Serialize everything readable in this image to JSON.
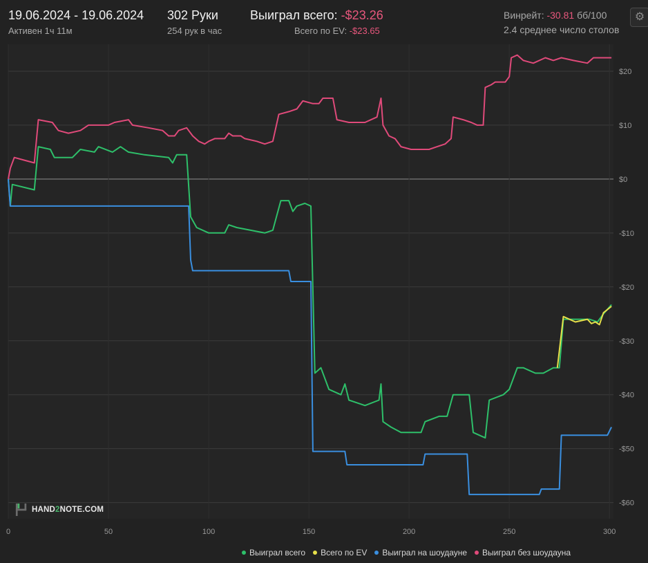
{
  "header": {
    "date_range": "19.06.2024 - 19.06.2024",
    "active_time": "Активен 1ч 11м",
    "hands": "302 Руки",
    "hands_per_hour": "254 рук в час",
    "won_total_label": "Выиграл всего:",
    "won_total_value": "-$23.26",
    "ev_total_label": "Всего по EV:",
    "ev_total_value": "-$23.65",
    "winrate_label": "Винрейт:",
    "winrate_value": "-30.81",
    "winrate_unit": "бб/100",
    "avg_tables": "2.4 среднее число столов"
  },
  "watermark": {
    "prefix": "HAND",
    "num": "2",
    "suffix": "NOTE.COM"
  },
  "colors": {
    "green": "#2ec06a",
    "yellow": "#e6e04a",
    "blue": "#3a8fe0",
    "pink": "#e04a7a",
    "negative": "#e8577d"
  },
  "chart_data": {
    "type": "line",
    "xlim": [
      0,
      302
    ],
    "ylim": [
      -63,
      25
    ],
    "x_ticks": [
      0,
      50,
      100,
      150,
      200,
      250,
      300
    ],
    "y_ticks": [
      20,
      10,
      0,
      -10,
      -20,
      -30,
      -40,
      -50,
      -60
    ],
    "y_tick_labels": [
      "$20",
      "$10",
      "$0",
      "-$10",
      "-$20",
      "-$30",
      "-$40",
      "-$50",
      "-$60"
    ],
    "grid": true,
    "legend_position": "bottom-right",
    "series": [
      {
        "name": "Выиграл всего",
        "color": "#2ec06a",
        "points": [
          [
            0,
            0
          ],
          [
            1,
            -5
          ],
          [
            2,
            -1
          ],
          [
            13,
            -2
          ],
          [
            15,
            6
          ],
          [
            21,
            5.5
          ],
          [
            23,
            4
          ],
          [
            32,
            4
          ],
          [
            36,
            5.5
          ],
          [
            43,
            5
          ],
          [
            45,
            6
          ],
          [
            52,
            5
          ],
          [
            56,
            6
          ],
          [
            60,
            5
          ],
          [
            68,
            4.5
          ],
          [
            80,
            4
          ],
          [
            82,
            3
          ],
          [
            84,
            4.5
          ],
          [
            89,
            4.5
          ],
          [
            91,
            -7
          ],
          [
            94,
            -9
          ],
          [
            100,
            -10
          ],
          [
            108,
            -10
          ],
          [
            110,
            -8.5
          ],
          [
            114,
            -9
          ],
          [
            128,
            -10
          ],
          [
            132,
            -9.5
          ],
          [
            136,
            -4
          ],
          [
            140,
            -4
          ],
          [
            142,
            -6
          ],
          [
            144,
            -5
          ],
          [
            148,
            -4.5
          ],
          [
            151,
            -5
          ],
          [
            153,
            -36
          ],
          [
            156,
            -35
          ],
          [
            160,
            -39
          ],
          [
            166,
            -40
          ],
          [
            168,
            -38
          ],
          [
            170,
            -41
          ],
          [
            178,
            -42
          ],
          [
            185,
            -41
          ],
          [
            186,
            -38
          ],
          [
            187,
            -45
          ],
          [
            191,
            -46
          ],
          [
            196,
            -47
          ],
          [
            206,
            -47
          ],
          [
            208,
            -45
          ],
          [
            215,
            -44
          ],
          [
            219,
            -44
          ],
          [
            222,
            -40
          ],
          [
            230,
            -40
          ],
          [
            232,
            -47
          ],
          [
            238,
            -48
          ],
          [
            240,
            -41
          ],
          [
            247,
            -40
          ],
          [
            250,
            -39
          ],
          [
            254,
            -35
          ],
          [
            257,
            -35
          ],
          [
            263,
            -36
          ],
          [
            267,
            -36
          ],
          [
            272,
            -35
          ],
          [
            275,
            -35
          ],
          [
            277,
            -26
          ],
          [
            290,
            -26
          ],
          [
            294,
            -26.5
          ],
          [
            297,
            -25
          ],
          [
            301,
            -23.3
          ]
        ]
      },
      {
        "name": "Всего по EV",
        "color": "#e6e04a",
        "points": [
          [
            274,
            -35
          ],
          [
            277,
            -25.5
          ],
          [
            283,
            -26.5
          ],
          [
            289,
            -26
          ],
          [
            291,
            -26.8
          ],
          [
            293,
            -26.5
          ],
          [
            295,
            -27
          ],
          [
            297,
            -24.8
          ],
          [
            301,
            -23.6
          ]
        ]
      },
      {
        "name": "Выиграл на шоудауне",
        "color": "#3a8fe0",
        "points": [
          [
            0,
            0
          ],
          [
            1,
            -5
          ],
          [
            90,
            -5
          ],
          [
            91,
            -15
          ],
          [
            92,
            -17
          ],
          [
            140,
            -17
          ],
          [
            141,
            -19
          ],
          [
            151,
            -19
          ],
          [
            152,
            -50.5
          ],
          [
            168,
            -50.5
          ],
          [
            169,
            -53
          ],
          [
            207,
            -53
          ],
          [
            208,
            -51
          ],
          [
            229,
            -51
          ],
          [
            230,
            -58.5
          ],
          [
            265,
            -58.5
          ],
          [
            266,
            -57.5
          ],
          [
            275,
            -57.5
          ],
          [
            276,
            -47.5
          ],
          [
            299,
            -47.5
          ],
          [
            301,
            -46
          ]
        ]
      },
      {
        "name": "Выиграл без шоудауна",
        "color": "#e04a7a",
        "points": [
          [
            0,
            0
          ],
          [
            1,
            2
          ],
          [
            3,
            4
          ],
          [
            8,
            3.5
          ],
          [
            13,
            3
          ],
          [
            15,
            11
          ],
          [
            22,
            10.5
          ],
          [
            25,
            9
          ],
          [
            30,
            8.5
          ],
          [
            36,
            9
          ],
          [
            40,
            10
          ],
          [
            50,
            10
          ],
          [
            53,
            10.5
          ],
          [
            60,
            11
          ],
          [
            62,
            10
          ],
          [
            70,
            9.5
          ],
          [
            77,
            9
          ],
          [
            80,
            8
          ],
          [
            83,
            8
          ],
          [
            85,
            9
          ],
          [
            89,
            9.5
          ],
          [
            92,
            8
          ],
          [
            95,
            7
          ],
          [
            98,
            6.5
          ],
          [
            100,
            7
          ],
          [
            103,
            7.5
          ],
          [
            108,
            7.5
          ],
          [
            110,
            8.5
          ],
          [
            112,
            8
          ],
          [
            116,
            8
          ],
          [
            118,
            7.5
          ],
          [
            124,
            7
          ],
          [
            128,
            6.5
          ],
          [
            132,
            7
          ],
          [
            135,
            12
          ],
          [
            140,
            12.5
          ],
          [
            144,
            13
          ],
          [
            147,
            14.5
          ],
          [
            152,
            14
          ],
          [
            155,
            14
          ],
          [
            157,
            15
          ],
          [
            162,
            15
          ],
          [
            164,
            11
          ],
          [
            170,
            10.5
          ],
          [
            178,
            10.5
          ],
          [
            181,
            11
          ],
          [
            184,
            11.5
          ],
          [
            186,
            15
          ],
          [
            187,
            10
          ],
          [
            190,
            8
          ],
          [
            193,
            7.5
          ],
          [
            196,
            6
          ],
          [
            201,
            5.5
          ],
          [
            210,
            5.5
          ],
          [
            214,
            6
          ],
          [
            218,
            6.5
          ],
          [
            221,
            7.5
          ],
          [
            222,
            11.5
          ],
          [
            227,
            11
          ],
          [
            231,
            10.5
          ],
          [
            234,
            10
          ],
          [
            237,
            10
          ],
          [
            238,
            17
          ],
          [
            241,
            17.5
          ],
          [
            243,
            18
          ],
          [
            248,
            18
          ],
          [
            250,
            19
          ],
          [
            251,
            22.5
          ],
          [
            254,
            23
          ],
          [
            257,
            22
          ],
          [
            262,
            21.5
          ],
          [
            268,
            22.5
          ],
          [
            272,
            22
          ],
          [
            276,
            22.5
          ],
          [
            282,
            22
          ],
          [
            289,
            21.5
          ],
          [
            292,
            22.5
          ],
          [
            301,
            22.5
          ]
        ]
      }
    ]
  }
}
